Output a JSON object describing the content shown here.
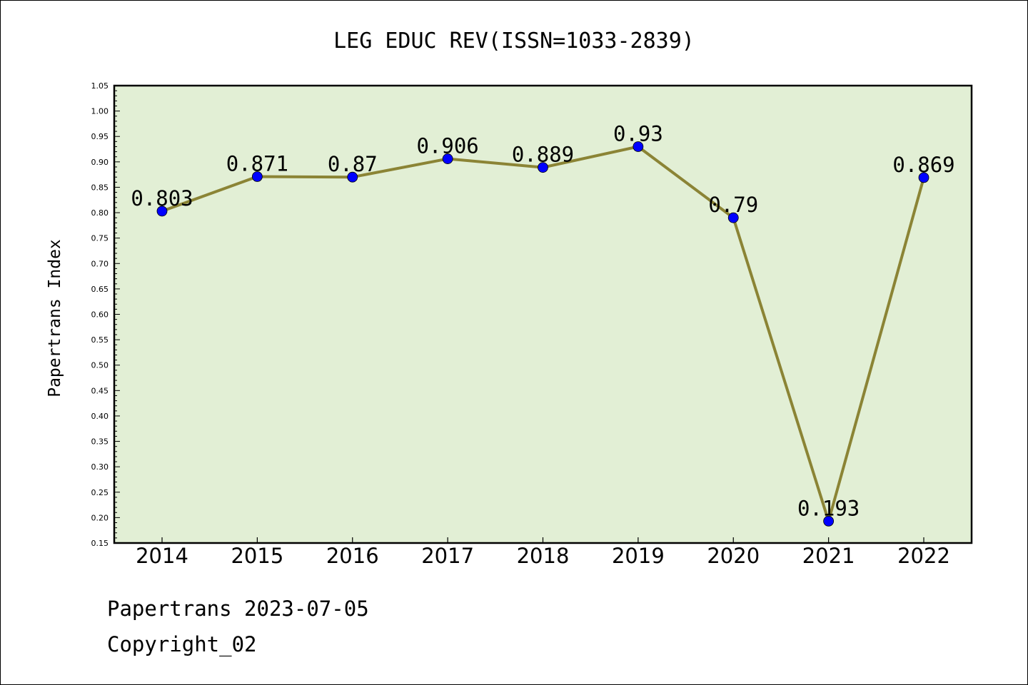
{
  "chart_data": {
    "type": "line",
    "title": "LEG EDUC REV(ISSN=1033-2839)",
    "xlabel": "",
    "ylabel": "Papertrans Index",
    "categories": [
      "2014",
      "2015",
      "2016",
      "2017",
      "2018",
      "2019",
      "2020",
      "2021",
      "2022"
    ],
    "series": [
      {
        "values": [
          0.803,
          0.871,
          0.87,
          0.906,
          0.889,
          0.93,
          0.79,
          0.193,
          0.869
        ],
        "data_labels": [
          "0.803",
          "0.871",
          "0.87",
          "0.906",
          "0.889",
          "0.93",
          "0.79",
          "0.193",
          "0.869"
        ]
      }
    ],
    "ylim": [
      0.15,
      1.05
    ],
    "yticks": [
      "0.15",
      "0.20",
      "0.25",
      "0.30",
      "0.35",
      "0.40",
      "0.45",
      "0.50",
      "0.55",
      "0.60",
      "0.65",
      "0.70",
      "0.75",
      "0.80",
      "0.85",
      "0.90",
      "0.95",
      "1.00",
      "1.05"
    ],
    "grid": false,
    "colors": {
      "plot_background": "#e2efd5",
      "line": "#8b8435",
      "marker": "#0000ff"
    }
  },
  "footer": {
    "date_line": "Papertrans 2023-07-05",
    "copyright": "Copyright_02"
  }
}
